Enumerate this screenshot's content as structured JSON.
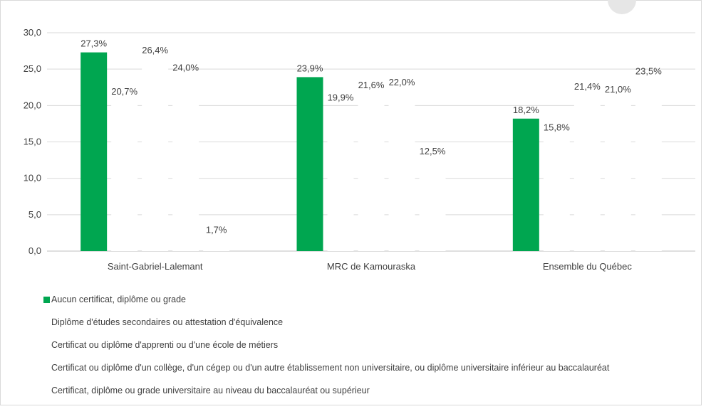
{
  "chart_data": {
    "type": "bar",
    "categories": [
      "Saint-Gabriel-Lalemant",
      "MRC de Kamouraska",
      "Ensemble du Québec"
    ],
    "series": [
      {
        "name": "Aucun certificat, diplôme ou grade",
        "values": [
          27.3,
          23.9,
          18.2
        ],
        "labels": [
          "27,3%",
          "23,9%",
          "18,2%"
        ],
        "color": "#00a650"
      },
      {
        "name": "Diplôme d'études secondaires ou attestation d'équivalence",
        "values": [
          20.7,
          19.9,
          15.8
        ],
        "labels": [
          "20,7%",
          "19,9%",
          "15,8%"
        ],
        "color": "#ffffff"
      },
      {
        "name": "Certificat ou diplôme d'apprenti ou d'une école de métiers",
        "values": [
          26.4,
          21.6,
          21.4
        ],
        "labels": [
          "26,4%",
          "21,6%",
          "21,4%"
        ],
        "color": "#ffffff"
      },
      {
        "name": "Certificat ou diplôme d'un collège, d'un cégep ou d'un autre établissement non universitaire, ou diplôme universitaire inférieur au baccalauréat",
        "values": [
          24.0,
          22.0,
          21.0
        ],
        "labels": [
          "24,0%",
          "22,0%",
          "21,0%"
        ],
        "color": "#ffffff"
      },
      {
        "name": "Certificat, diplôme ou grade universitaire au niveau du baccalauréat ou supérieur",
        "values": [
          1.7,
          12.5,
          23.5
        ],
        "labels": [
          "1,7%",
          "12,5%",
          "23,5%"
        ],
        "color": "#ffffff"
      }
    ],
    "yticks": [
      "0,0",
      "5,0",
      "10,0",
      "15,0",
      "20,0",
      "25,0",
      "30,0"
    ],
    "ylim": [
      0,
      30
    ],
    "grid": true,
    "legend_position": "bottom",
    "title": "",
    "xlabel": "",
    "ylabel": ""
  },
  "colors": {
    "grid": "#d9d9d9",
    "axis": "#bfbfbf",
    "text": "#404040"
  }
}
